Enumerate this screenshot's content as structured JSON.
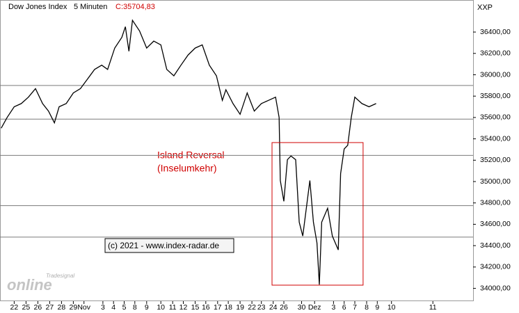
{
  "chart_data": {
    "type": "line",
    "title": "Dow Jones Index",
    "subtitle": "5 Minuten",
    "last_value_label": "C:35704,83",
    "symbol": "XXP",
    "color": "#000000",
    "x": [
      -1.1,
      -0.6,
      0,
      0.6,
      1.2,
      1.8,
      2.4,
      2.9,
      3.4,
      3.8,
      4.4,
      5,
      5.6,
      6.2,
      6.8,
      7.4,
      7.9,
      8.5,
      9.1,
      9.4,
      9.7,
      10,
      10.6,
      11.2,
      11.8,
      12.4,
      12.9,
      13.5,
      14.1,
      14.7,
      15.3,
      15.9,
      16.5,
      17.1,
      17.6,
      17.9,
      18.5,
      19.1,
      19.7,
      20.3,
      20.9,
      21.5,
      22.1,
      22.4,
      22.5,
      22.8,
      23.1,
      23.4,
      23.8,
      24.1,
      24.4,
      24.7,
      25,
      25.3,
      25.6,
      25.8,
      26,
      26.5,
      26.9,
      27.4,
      27.6,
      27.9,
      28.2,
      28.5,
      28.8,
      29.4,
      30,
      30.6
    ],
    "values": [
      35500,
      35600,
      35700,
      35730,
      35790,
      35870,
      35730,
      35660,
      35550,
      35700,
      35730,
      35830,
      35870,
      35960,
      36050,
      36090,
      36050,
      36250,
      36350,
      36450,
      36220,
      36510,
      36410,
      36250,
      36315,
      36280,
      36050,
      35990,
      36090,
      36185,
      36250,
      36280,
      36090,
      35990,
      35760,
      35860,
      35730,
      35630,
      35830,
      35660,
      35730,
      35760,
      35790,
      35600,
      35010,
      34815,
      35205,
      35240,
      35205,
      34620,
      34490,
      34750,
      35010,
      34620,
      34425,
      34035,
      34620,
      34750,
      34490,
      34360,
      35075,
      35305,
      35340,
      35600,
      35790,
      35730,
      35700,
      35730
    ],
    "xlim": [
      -1.2,
      38.8
    ],
    "xticks": [
      {
        "value": 0,
        "label": "22"
      },
      {
        "value": 1,
        "label": "25"
      },
      {
        "value": 2,
        "label": "26"
      },
      {
        "value": 3,
        "label": "27"
      },
      {
        "value": 4,
        "label": "28"
      },
      {
        "value": 5,
        "label": "29"
      },
      {
        "value": 5.9,
        "label": "Nov"
      },
      {
        "value": 7.5,
        "label": "3"
      },
      {
        "value": 8.4,
        "label": "4"
      },
      {
        "value": 9.3,
        "label": "5"
      },
      {
        "value": 10.2,
        "label": "8"
      },
      {
        "value": 11.2,
        "label": "9"
      },
      {
        "value": 12.4,
        "label": "10"
      },
      {
        "value": 13.4,
        "label": "11"
      },
      {
        "value": 14.3,
        "label": "12"
      },
      {
        "value": 15.3,
        "label": "15"
      },
      {
        "value": 16.2,
        "label": "16"
      },
      {
        "value": 17.2,
        "label": "17"
      },
      {
        "value": 18.1,
        "label": "18"
      },
      {
        "value": 19.1,
        "label": "19"
      },
      {
        "value": 20.1,
        "label": "22"
      },
      {
        "value": 20.9,
        "label": "23"
      },
      {
        "value": 21.9,
        "label": "24"
      },
      {
        "value": 22.8,
        "label": "26"
      },
      {
        "value": 24.3,
        "label": "30"
      },
      {
        "value": 25.4,
        "label": "Dez"
      },
      {
        "value": 27,
        "label": "3"
      },
      {
        "value": 27.9,
        "label": "6"
      },
      {
        "value": 28.8,
        "label": "7"
      },
      {
        "value": 29.8,
        "label": "8"
      },
      {
        "value": 30.7,
        "label": "9"
      },
      {
        "value": 31.9,
        "label": "10"
      },
      {
        "value": 35.4,
        "label": "11"
      }
    ],
    "ylim": [
      33880,
      36700
    ],
    "yticks": [
      {
        "value": 34000,
        "label": "34000,00"
      },
      {
        "value": 34200,
        "label": "34200,00"
      },
      {
        "value": 34400,
        "label": "34400,00"
      },
      {
        "value": 34600,
        "label": "34600,00"
      },
      {
        "value": 34800,
        "label": "34800,00"
      },
      {
        "value": 35000,
        "label": "35000,00"
      },
      {
        "value": 35200,
        "label": "35200,00"
      },
      {
        "value": 35400,
        "label": "35400,00"
      },
      {
        "value": 35600,
        "label": "35600,00"
      },
      {
        "value": 35800,
        "label": "35800,00"
      },
      {
        "value": 36000,
        "label": "36000,00"
      },
      {
        "value": 36200,
        "label": "36200,00"
      },
      {
        "value": 36400,
        "label": "36400,00"
      }
    ],
    "hlines": [
      35900,
      35585,
      35245,
      34775,
      34480
    ],
    "box": {
      "xlim": [
        21.8,
        29.5
      ],
      "ylim": [
        34030,
        35365
      ],
      "color": "#d00000"
    },
    "annotation": [
      "Island Reversal",
      "(Inselumkehr)"
    ],
    "copyright": "(c) 2021 - www.index-radar.de",
    "watermark": [
      "Tradesignal",
      "online"
    ]
  }
}
